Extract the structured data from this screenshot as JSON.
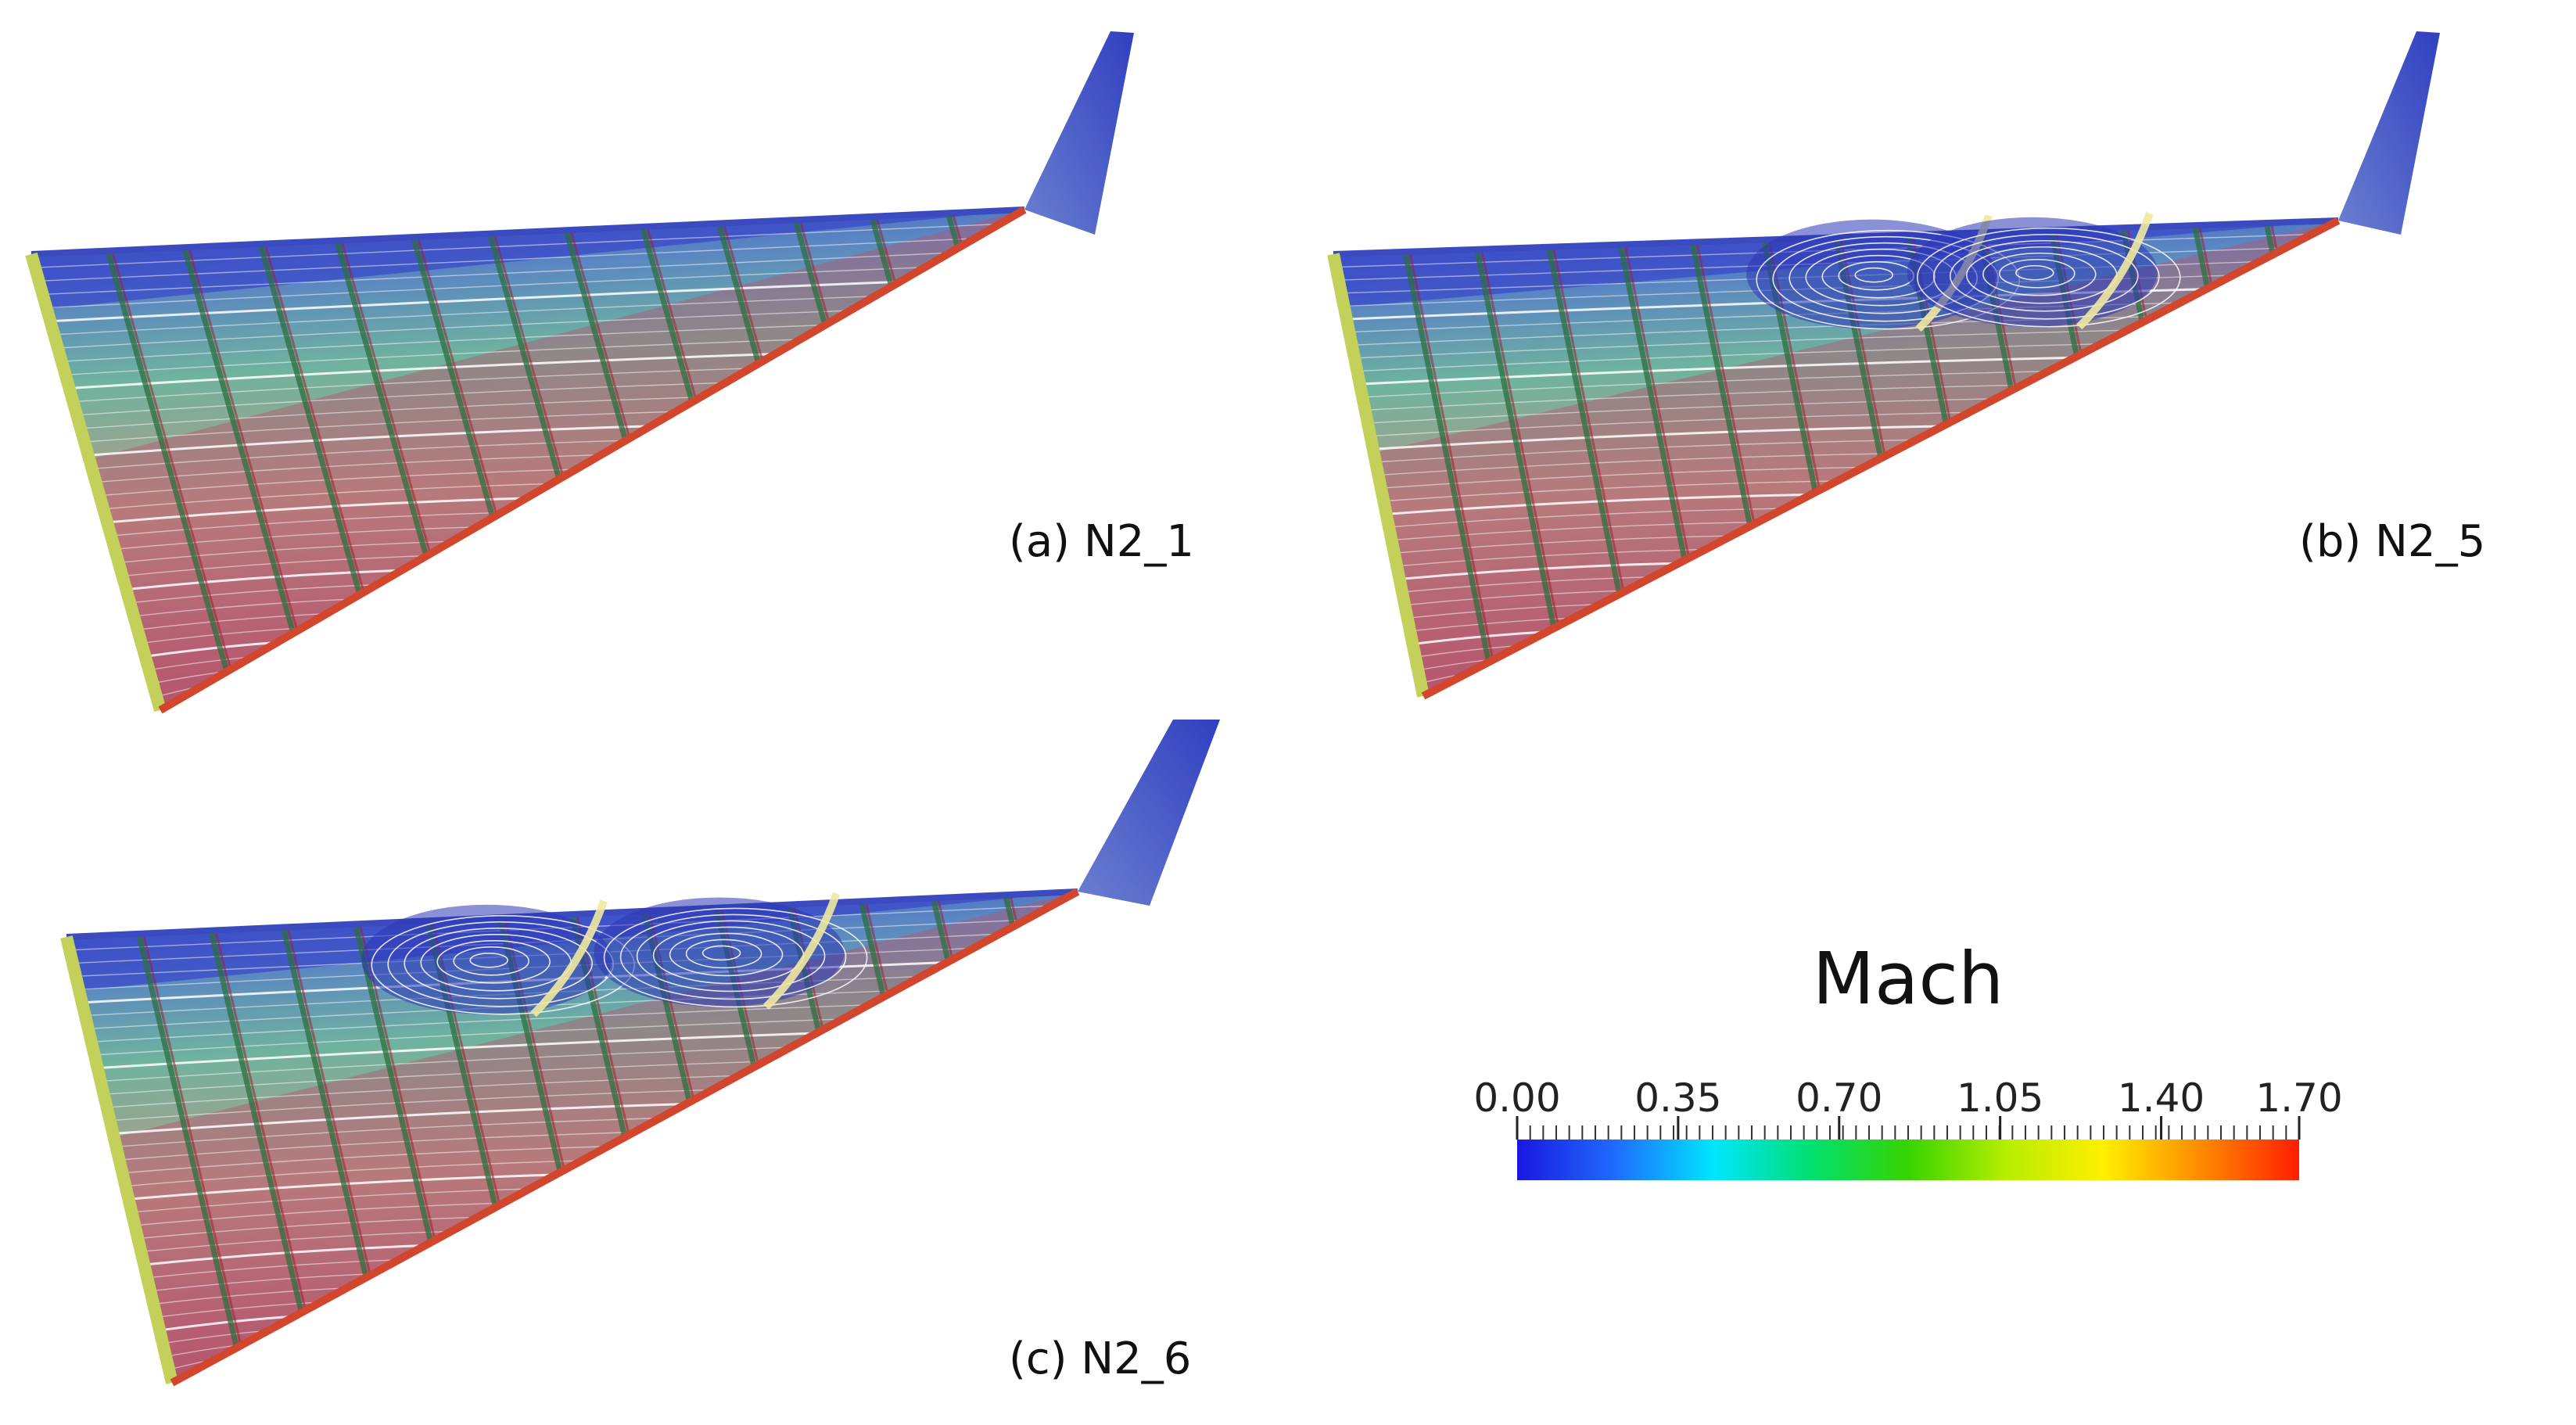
{
  "panels": [
    {
      "id": "a",
      "caption": "(a) N2_1",
      "vortices": []
    },
    {
      "id": "b",
      "caption": "(b) N2_5",
      "vortices": [
        {
          "u": 0.52,
          "v": 0.12
        },
        {
          "u": 0.68,
          "v": 0.13
        }
      ]
    },
    {
      "id": "c",
      "caption": "(c) N2_6",
      "vortices": [
        {
          "u": 0.4,
          "v": 0.13
        },
        {
          "u": 0.63,
          "v": 0.14
        }
      ]
    }
  ],
  "colorbar": {
    "title": "Mach",
    "tick_labels": [
      "0.00",
      "0.35",
      "0.70",
      "1.05",
      "1.40",
      "1.70"
    ],
    "tick_values": [
      0.0,
      0.35,
      0.7,
      1.05,
      1.4,
      1.7
    ],
    "range": [
      0.0,
      1.7
    ],
    "colors": [
      "#1a17e0",
      "#1f6bff",
      "#00e5ff",
      "#00e070",
      "#37d400",
      "#b6ee00",
      "#ffef00",
      "#ff8a00",
      "#ff1e00"
    ]
  },
  "colors": {
    "low": "#3a49c8",
    "mid": "#6fb39e",
    "high": "#b5546e",
    "edge": "#c3d05a",
    "spar": "#2e6e3e",
    "streamline": "#ffffff"
  }
}
